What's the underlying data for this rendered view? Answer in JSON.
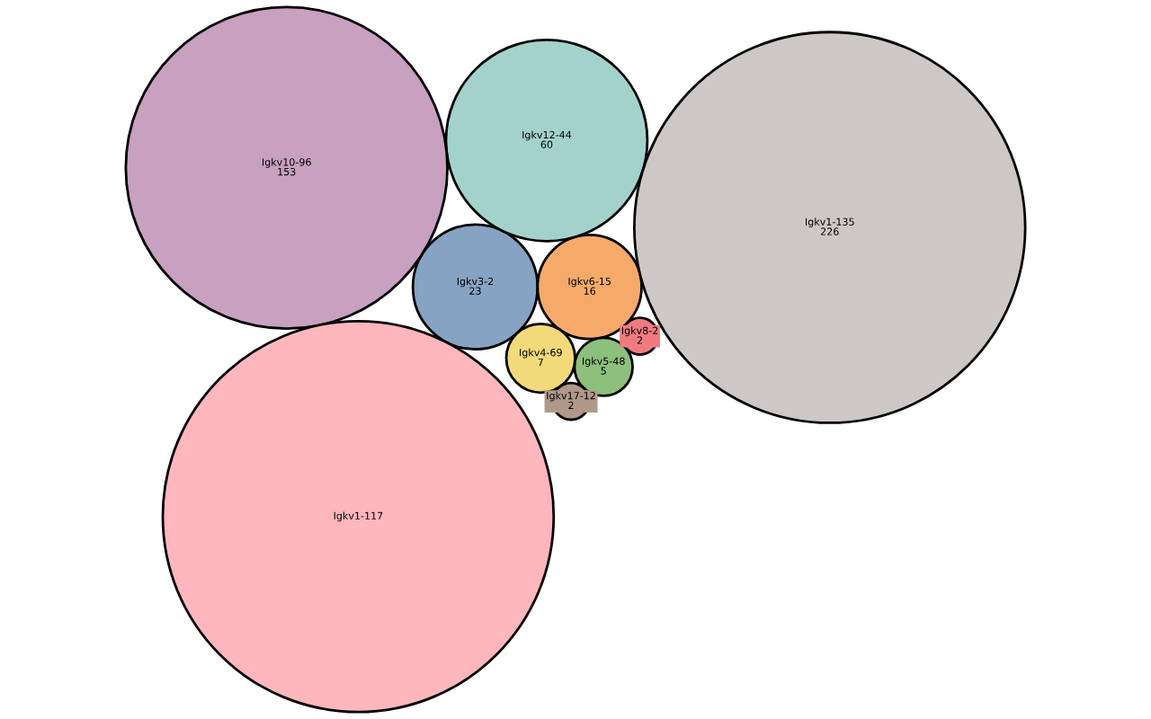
{
  "chart_data": {
    "type": "other",
    "categories": [
      "Igkv3-2",
      "Igkv6-15",
      "Igkv12-44",
      "Igkv10-96",
      "Igkv1-135",
      "Igkv1-117",
      "Igkv4-69",
      "Igkv5-48",
      "Igkv8-2",
      "Igkv17-12"
    ],
    "values": [
      23,
      16,
      60,
      153,
      226,
      null,
      7,
      5,
      2,
      2
    ],
    "value_labels": [
      "23",
      "16",
      "60",
      "153",
      "226",
      null,
      "7",
      "5",
      "2",
      "2"
    ],
    "colors": [
      "#86a3c4",
      "#f5aa6a",
      "#a3d2cc",
      "#c8a0c0",
      "#cdc8c6",
      "#ffb6bd",
      "#f2d97a",
      "#8dc07c",
      "#ef7b80",
      "#b0998a"
    ]
  }
}
